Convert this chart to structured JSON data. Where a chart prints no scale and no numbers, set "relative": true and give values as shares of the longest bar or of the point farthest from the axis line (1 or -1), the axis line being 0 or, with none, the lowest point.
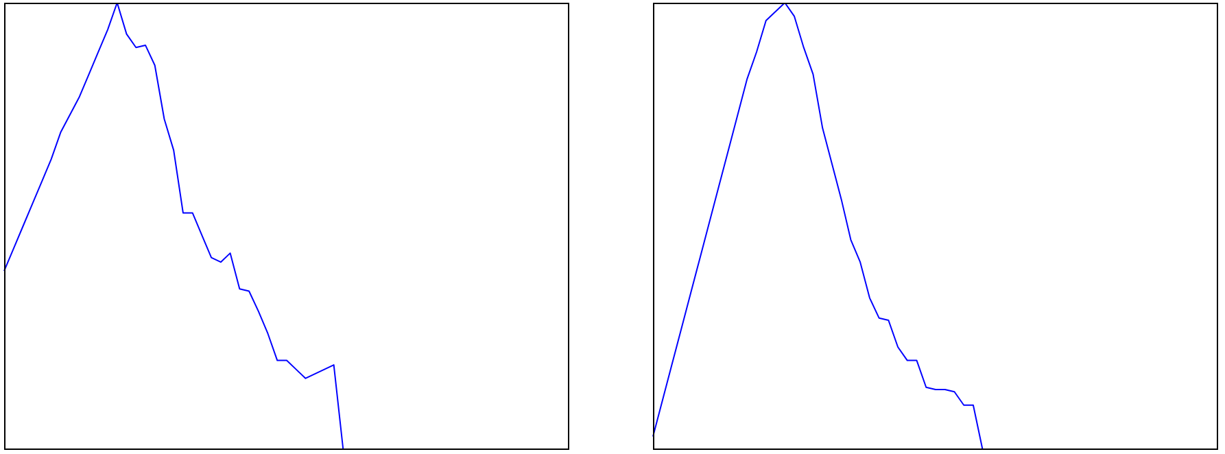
{
  "chart_data": [
    {
      "type": "line",
      "relative": true,
      "tick_labels": false,
      "categories": [
        null,
        null,
        null,
        null,
        null,
        null,
        null,
        null,
        null,
        null,
        null,
        null,
        null,
        null,
        null,
        null,
        null,
        null,
        null,
        null,
        null,
        null,
        null,
        null,
        null,
        null,
        null,
        null,
        null,
        null,
        null,
        null,
        null,
        null,
        null,
        null,
        null,
        null,
        null,
        null,
        null,
        null,
        null,
        null,
        null,
        null,
        null,
        null,
        null,
        null,
        null,
        null,
        null,
        null,
        null,
        null,
        null,
        null,
        null,
        null,
        null
      ],
      "series": [
        {
          "color": "#0000ff",
          "values": [
            0.4,
            0.45,
            0.5,
            0.55,
            0.6,
            0.65,
            0.71,
            0.75,
            0.79,
            0.84,
            0.89,
            0.94,
            1,
            0.93,
            0.9,
            0.905,
            0.86,
            0.74,
            0.67,
            0.53,
            0.53,
            0.48,
            0.43,
            0.42,
            0.44,
            0.36,
            0.355,
            0.31,
            0.26,
            0.2,
            0.2,
            0.18,
            0.16,
            0.17,
            0.18,
            0.19,
            0,
            null,
            null,
            null,
            null,
            null,
            null,
            null,
            null,
            null,
            null,
            null,
            null,
            null,
            null,
            null,
            null,
            null,
            null,
            null,
            null,
            null,
            null,
            null,
            null
          ]
        }
      ]
    },
    {
      "type": "line",
      "relative": true,
      "tick_labels": false,
      "categories": [
        null,
        null,
        null,
        null,
        null,
        null,
        null,
        null,
        null,
        null,
        null,
        null,
        null,
        null,
        null,
        null,
        null,
        null,
        null,
        null,
        null,
        null,
        null,
        null,
        null,
        null,
        null,
        null,
        null,
        null,
        null,
        null,
        null,
        null,
        null,
        null,
        null,
        null,
        null,
        null,
        null,
        null,
        null,
        null,
        null,
        null,
        null,
        null,
        null,
        null,
        null,
        null,
        null,
        null,
        null,
        null,
        null,
        null,
        null,
        null,
        null
      ],
      "series": [
        {
          "color": "#0000ff",
          "values": [
            0.03,
            0.11,
            0.19,
            0.27,
            0.35,
            0.43,
            0.51,
            0.59,
            0.67,
            0.75,
            0.83,
            0.89,
            0.96,
            0.98,
            1,
            0.97,
            0.9,
            0.84,
            0.72,
            0.64,
            0.56,
            0.47,
            0.42,
            0.34,
            0.295,
            0.29,
            0.23,
            0.2,
            0.2,
            0.14,
            0.135,
            0.135,
            0.13,
            0.1,
            0.1,
            0,
            null,
            null,
            null,
            null,
            null,
            null,
            null,
            null,
            null,
            null,
            null,
            null,
            null,
            null,
            null,
            null,
            null,
            null,
            null,
            null,
            null,
            null,
            null,
            null,
            null
          ]
        }
      ]
    }
  ]
}
